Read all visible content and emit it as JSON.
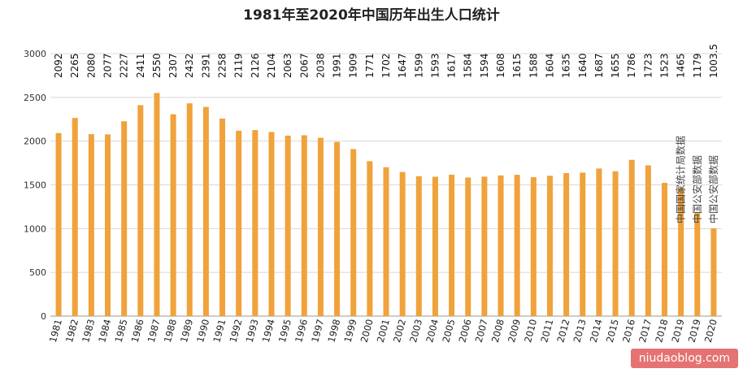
{
  "chart_data": {
    "type": "bar",
    "title": "1981年至2020年中国历年出生人口统计",
    "xlabel": "",
    "ylabel": "",
    "ylim": [
      0,
      3000
    ],
    "yticks": [
      0,
      500,
      1000,
      1500,
      2000,
      2500,
      3000
    ],
    "grid": true,
    "categories": [
      "1981",
      "1982",
      "1983",
      "1984",
      "1985",
      "1986",
      "1987",
      "1988",
      "1989",
      "1990",
      "1991",
      "1992",
      "1993",
      "1994",
      "1995",
      "1996",
      "1997",
      "1998",
      "1999",
      "2000",
      "2001",
      "2002",
      "2003",
      "2004",
      "2005",
      "2006",
      "2007",
      "2008",
      "2009",
      "2010",
      "2011",
      "2012",
      "2013",
      "2014",
      "2015",
      "2016",
      "2017",
      "2018",
      "2019",
      "2019",
      "2020"
    ],
    "values": [
      2092,
      2265,
      2080,
      2077,
      2227,
      2411,
      2550,
      2307,
      2432,
      2391,
      2258,
      2119,
      2126,
      2104,
      2063,
      2067,
      2038,
      1991,
      1909,
      1771,
      1702,
      1647,
      1599,
      1593,
      1617,
      1584,
      1594,
      1608,
      1615,
      1588,
      1604,
      1635,
      1640,
      1687,
      1655,
      1786,
      1723,
      1523,
      1465,
      1179,
      1003.5
    ],
    "data_labels": [
      "2092",
      "2265",
      "2080",
      "2077",
      "2227",
      "2411",
      "2550",
      "2307",
      "2432",
      "2391",
      "2258",
      "2119",
      "2126",
      "2104",
      "2063",
      "2067",
      "2038",
      "1991",
      "1909",
      "1771",
      "1702",
      "1647",
      "1599",
      "1593",
      "1617",
      "1584",
      "1594",
      "1608",
      "1615",
      "1588",
      "1604",
      "1635",
      "1640",
      "1687",
      "1655",
      "1786",
      "1723",
      "1523",
      "1465",
      "1179",
      "1003.5"
    ],
    "annotations": [
      {
        "text": "中国国家统计局数据",
        "bar_index": 38
      },
      {
        "text": "中国公安部数据",
        "bar_index": 39
      },
      {
        "text": "中国公安部数据",
        "bar_index": 40
      }
    ],
    "colors": {
      "bar": "#F0A23B",
      "grid": "#d8d8d8",
      "watermark_bg": "#e57373"
    }
  },
  "watermark": "niudaoblog.com"
}
